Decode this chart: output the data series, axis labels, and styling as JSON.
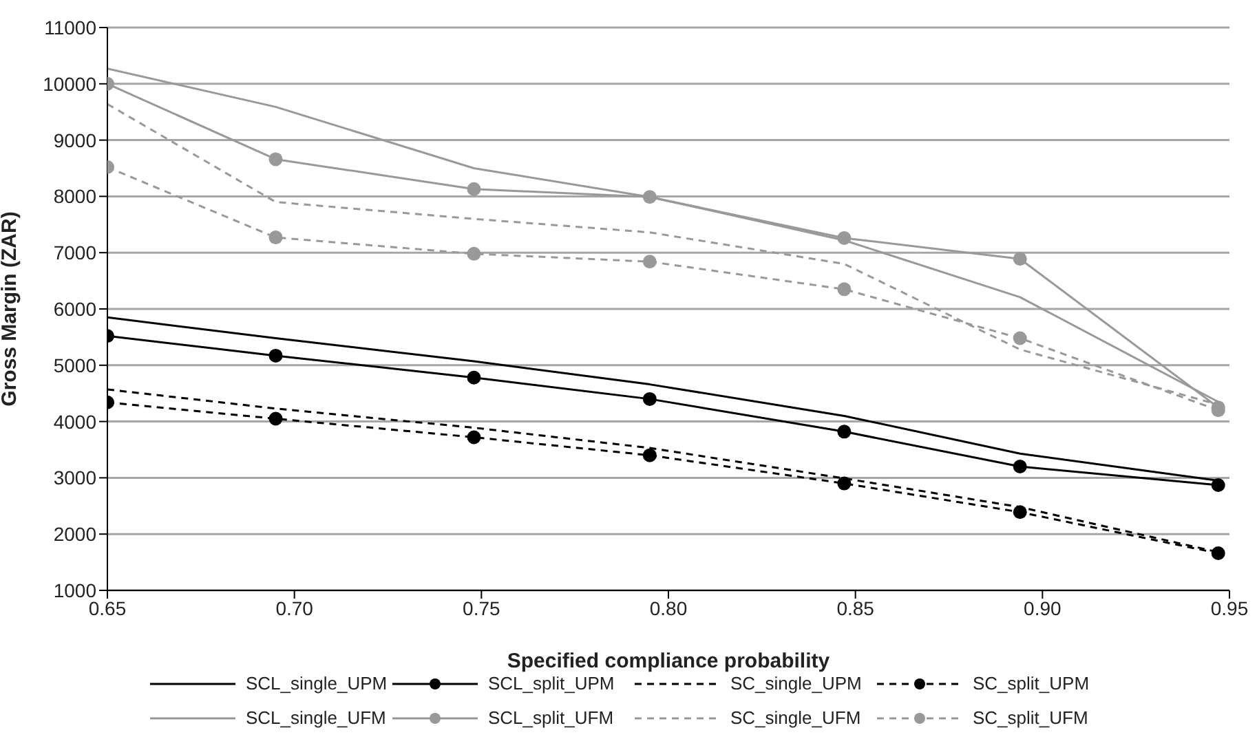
{
  "chart_data": {
    "type": "line",
    "xlabel": "Specified compliance probability",
    "ylabel": "Gross Margin (ZAR)",
    "x": [
      0.65,
      0.695,
      0.748,
      0.795,
      0.847,
      0.894,
      0.947
    ],
    "xlim": [
      0.65,
      0.95
    ],
    "xticks": [
      0.65,
      {
        "value": 0.7,
        "label": "0.70"
      },
      0.75,
      {
        "value": 0.8,
        "label": "0.80"
      },
      0.85,
      {
        "value": 0.9,
        "label": "0.90"
      },
      0.95
    ],
    "ylim": [
      1000,
      11000
    ],
    "yticks": [
      1000,
      2000,
      3000,
      4000,
      5000,
      6000,
      7000,
      8000,
      9000,
      10000,
      11000
    ],
    "grid": "y",
    "legend": "bottom",
    "series": [
      {
        "name": "SCL_single_UPM",
        "color": "#000000",
        "marker": "none",
        "line_style": "solid",
        "values": [
          5850,
          5480,
          5070,
          4660,
          4100,
          3430,
          2950
        ]
      },
      {
        "name": "SCL_split_UPM",
        "color": "#000000",
        "marker": "circle",
        "line_style": "solid",
        "values": [
          5520,
          5170,
          4780,
          4400,
          3820,
          3200,
          2870
        ]
      },
      {
        "name": "SC_single_UPM",
        "color": "#000000",
        "marker": "none",
        "line_style": "dashed",
        "values": [
          4570,
          4230,
          3890,
          3530,
          2990,
          2480,
          1680
        ]
      },
      {
        "name": "SC_split_UPM",
        "color": "#000000",
        "marker": "circle",
        "line_style": "dashed",
        "values": [
          4340,
          4050,
          3720,
          3400,
          2900,
          2390,
          1660
        ]
      },
      {
        "name": "SCL_single_UFM",
        "color": "#999999",
        "marker": "none",
        "line_style": "solid",
        "values": [
          10270,
          9590,
          8500,
          7990,
          7220,
          6210,
          4350
        ]
      },
      {
        "name": "SCL_split_UFM",
        "color": "#999999",
        "marker": "circle",
        "line_style": "solid",
        "values": [
          10000,
          8660,
          8130,
          7990,
          7260,
          6890,
          4250
        ]
      },
      {
        "name": "SC_single_UFM",
        "color": "#999999",
        "marker": "none",
        "line_style": "dashed",
        "values": [
          9640,
          7900,
          7600,
          7360,
          6800,
          5280,
          4300
        ]
      },
      {
        "name": "SC_split_UFM",
        "color": "#999999",
        "marker": "circle",
        "line_style": "dashed",
        "values": [
          8520,
          7270,
          6980,
          6840,
          6350,
          5480,
          4200
        ]
      }
    ]
  }
}
